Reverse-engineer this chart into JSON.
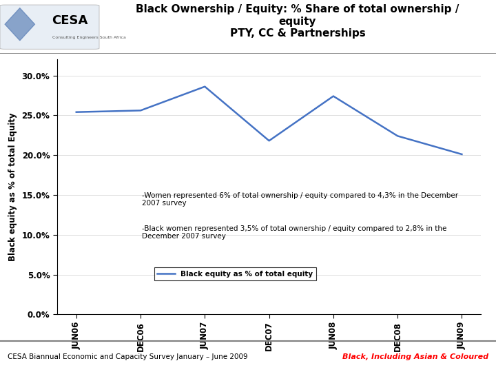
{
  "title_line1": "Black Ownership / Equity: % Share of total ownership /",
  "title_line2": "equity",
  "title_line3": "PTY, CC & Partnerships",
  "ylabel": "Black equity as % of total Equity",
  "categories": [
    "JUN06",
    "DEC06",
    "JUN07",
    "DEC07",
    "JUN08",
    "DEC08",
    "JUN09"
  ],
  "values": [
    0.254,
    0.256,
    0.286,
    0.218,
    0.274,
    0.224,
    0.201
  ],
  "ylim": [
    0.0,
    0.32
  ],
  "yticks": [
    0.0,
    0.05,
    0.1,
    0.15,
    0.2,
    0.25,
    0.3
  ],
  "ytick_labels": [
    "0.0%",
    "5.0%",
    "10.0%",
    "15.0%",
    "20.0%",
    "25.0%",
    "30.0%"
  ],
  "line_color": "#4472C4",
  "line_width": 1.8,
  "legend_label": "Black equity as % of total equity",
  "annotation1": "-Women represented 6% of total ownership / equity compared to 4,3% in the December\n2007 survey",
  "annotation2": "-Black women represented 3,5% of total ownership / equity compared to 2,8% in the\nDecember 2007 survey",
  "footer_left": "CESA Biannual Economic and Capacity Survey January – June 2009",
  "footer_right": "Black, Including Asian & Coloured",
  "bg_color": "#FFFFFF",
  "title_fontsize": 11,
  "axis_fontsize": 8.5,
  "tick_fontsize": 8.5,
  "annotation_fontsize": 7.5,
  "footer_fontsize": 7.5
}
